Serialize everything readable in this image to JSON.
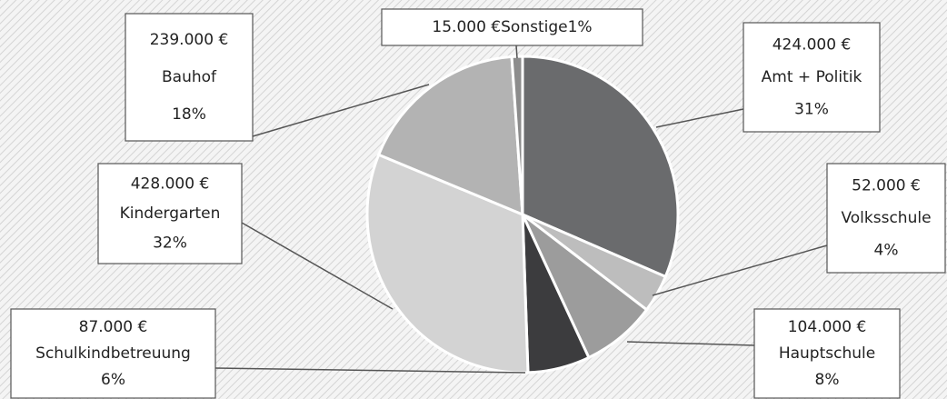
{
  "chart_data": {
    "type": "pie",
    "categories": [
      "Amt + Politik",
      "Volksschule",
      "Hauptschule",
      "Schulkindbetreuung",
      "Kindergarten",
      "Bauhof",
      "Sonstige"
    ],
    "values": [
      424000,
      52000,
      104000,
      87000,
      428000,
      239000,
      15000
    ],
    "value_labels": [
      "424.000 €",
      "52.000 €",
      "104.000 €",
      "87.000 €",
      "428.000 €",
      "239.000 €",
      "15.000 €"
    ],
    "percent_labels": [
      "31%",
      "4%",
      "8%",
      "6%",
      "32%",
      "18%",
      "1%"
    ],
    "colors": [
      "#6a6b6d",
      "#bdbdbd",
      "#9c9c9c",
      "#3c3c3e",
      "#d3d3d3",
      "#b3b3b3",
      "#8c8c8c"
    ]
  }
}
